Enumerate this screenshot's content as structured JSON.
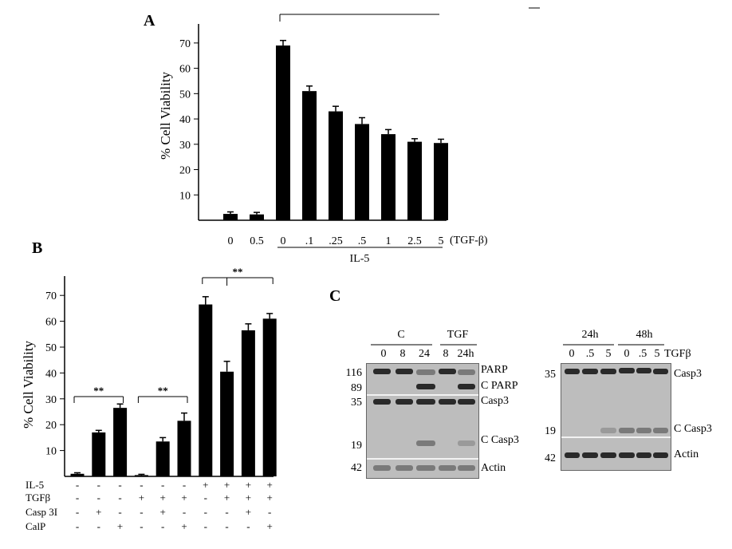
{
  "chart_data": [
    {
      "panel": "A",
      "type": "bar",
      "ylabel": "% Cell Viability",
      "ylim": [
        0,
        75
      ],
      "yticks": [
        10,
        20,
        30,
        40,
        50,
        60,
        70
      ],
      "categories": [
        "0",
        "0.5",
        "0",
        ".1",
        ".25",
        ".5",
        "1",
        "2.5",
        "5"
      ],
      "values": [
        2.5,
        2.3,
        69,
        51,
        43,
        38,
        34,
        31,
        30.5
      ],
      "errors": [
        0.8,
        0.8,
        2.0,
        2.0,
        2.0,
        2.5,
        1.8,
        1.2,
        1.5
      ],
      "x_suffix": "(TGF-β)",
      "group_label": "IL-5"
    },
    {
      "panel": "B",
      "type": "bar",
      "ylabel": "% Cell Viability",
      "ylim": [
        0,
        75
      ],
      "yticks": [
        10,
        20,
        30,
        40,
        50,
        60,
        70
      ],
      "values": [
        1,
        17,
        26.5,
        0.5,
        13.5,
        21.5,
        66.5,
        40.5,
        56.5,
        61
      ],
      "errors": [
        0.4,
        0.8,
        1.5,
        0.3,
        1.5,
        3.0,
        3.0,
        4.0,
        2.5,
        2.0
      ],
      "significance": "**",
      "conditions": [
        {
          "label": "IL-5",
          "signs": [
            "-",
            "-",
            "-",
            "-",
            "-",
            "-",
            "+",
            "+",
            "+",
            "+"
          ]
        },
        {
          "label": "TGFβ",
          "signs": [
            "-",
            "-",
            "-",
            "+",
            "+",
            "+",
            "-",
            "+",
            "+",
            "+"
          ]
        },
        {
          "label": "Casp 3I",
          "signs": [
            "-",
            "+",
            "-",
            "-",
            "+",
            "-",
            "-",
            "-",
            "+",
            "-"
          ]
        },
        {
          "label": "CalP",
          "signs": [
            "-",
            "-",
            "+",
            "-",
            "-",
            "+",
            "-",
            "-",
            "-",
            "+"
          ]
        }
      ]
    }
  ],
  "panels": {
    "a": "A",
    "b": "B",
    "c": "C"
  },
  "blot1": {
    "group_c": "C",
    "group_tgf": "TGF",
    "lanes": [
      "0",
      "8",
      "24",
      "8",
      "24h"
    ],
    "mw": [
      "116",
      "89",
      "35",
      "19",
      "42"
    ],
    "labels": [
      "PARP",
      "C PARP",
      "Casp3",
      "C Casp3",
      "Actin"
    ]
  },
  "blot2": {
    "group_24": "24h",
    "group_48": "48h",
    "lanes": [
      "0",
      ".5",
      "5",
      "0",
      ".5",
      "5"
    ],
    "lane_suffix": "TGFβ",
    "mw": [
      "35",
      "19",
      "42"
    ],
    "labels": [
      "Casp3",
      "C Casp3",
      "Actin"
    ]
  }
}
